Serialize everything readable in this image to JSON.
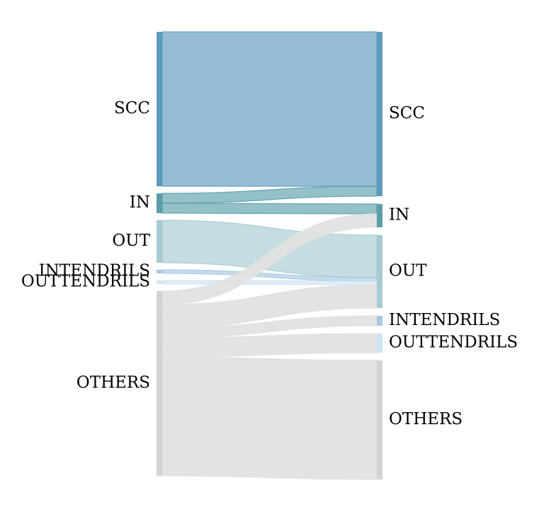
{
  "diagram": {
    "type": "sankey",
    "colors": {
      "SCC": "#5e9abd",
      "IN": "#5a9eaa",
      "OUT": "#a6cbd0",
      "INTENDRILS": "#a7c8e2",
      "OUTTENDRILS": "#cde4f2",
      "OTHERS": "#d3d3d3",
      "others_flow": "#e1e1e1"
    },
    "left_nodes": [
      {
        "id": "SCC",
        "label": "SCC"
      },
      {
        "id": "IN",
        "label": "IN"
      },
      {
        "id": "OUT",
        "label": "OUT"
      },
      {
        "id": "INTENDRILS",
        "label": "INTENDRILS"
      },
      {
        "id": "OUTTENDRILS",
        "label": "OUTTENDRILS"
      },
      {
        "id": "OTHERS",
        "label": "OTHERS"
      }
    ],
    "right_nodes": [
      {
        "id": "SCC",
        "label": "SCC"
      },
      {
        "id": "IN",
        "label": "IN"
      },
      {
        "id": "OUT",
        "label": "OUT"
      },
      {
        "id": "INTENDRILS",
        "label": "INTENDRILS"
      },
      {
        "id": "OUTTENDRILS",
        "label": "OUTTENDRILS"
      },
      {
        "id": "OTHERS",
        "label": "OTHERS"
      }
    ],
    "flows": [
      {
        "from": "SCC",
        "to": "SCC",
        "value": 218
      },
      {
        "from": "IN",
        "to": "SCC",
        "value": 14
      },
      {
        "from": "IN",
        "to": "IN",
        "value": 14
      },
      {
        "from": "OUT",
        "to": "OUT",
        "value": 60
      },
      {
        "from": "INTENDRILS",
        "to": "OUT",
        "value": 5
      },
      {
        "from": "OUTTENDRILS",
        "to": "OUT",
        "value": 5
      },
      {
        "from": "OTHERS",
        "to": "IN",
        "value": 19
      },
      {
        "from": "OTHERS",
        "to": "OUT",
        "value": 33
      },
      {
        "from": "OTHERS",
        "to": "INTENDRILS",
        "value": 14
      },
      {
        "from": "OTHERS",
        "to": "OUTTENDRILS",
        "value": 27
      },
      {
        "from": "OTHERS",
        "to": "OTHERS",
        "value": 168
      }
    ]
  }
}
